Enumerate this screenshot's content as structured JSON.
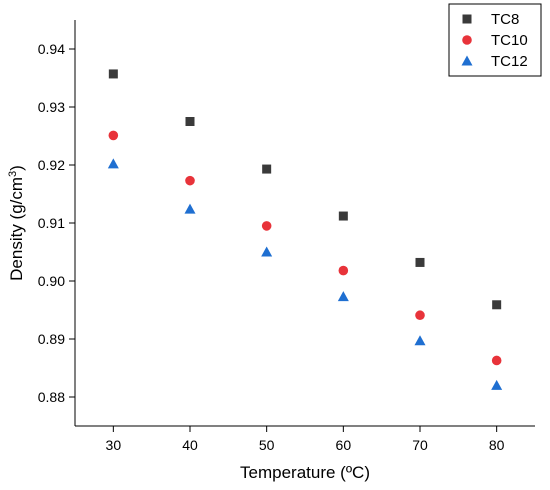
{
  "chart_data": {
    "type": "scatter",
    "xlabel": "Temperature (ºC)",
    "ylabel_main": "Density (g/cm",
    "ylabel_sup": "3",
    "ylabel_close": ")",
    "xlim": [
      25,
      85
    ],
    "ylim": [
      0.875,
      0.945
    ],
    "xticks": [
      30,
      40,
      50,
      60,
      70,
      80
    ],
    "yticks": [
      "0.88",
      "0.89",
      "0.90",
      "0.91",
      "0.92",
      "0.93",
      "0.94"
    ],
    "legend_position": "top-right",
    "x": [
      30,
      40,
      50,
      60,
      70,
      80
    ],
    "series": [
      {
        "name": "TC8",
        "marker": "square",
        "color": "#3a3a3a",
        "values": [
          0.9357,
          0.9275,
          0.9193,
          0.9112,
          0.9032,
          0.8959
        ]
      },
      {
        "name": "TC10",
        "marker": "circle",
        "color": "#e8333a",
        "values": [
          0.9251,
          0.9173,
          0.9095,
          0.9018,
          0.8941,
          0.8863
        ]
      },
      {
        "name": "TC12",
        "marker": "triangle",
        "color": "#1f6fd1",
        "values": [
          0.9202,
          0.9124,
          0.905,
          0.8973,
          0.8897,
          0.882
        ]
      }
    ]
  }
}
